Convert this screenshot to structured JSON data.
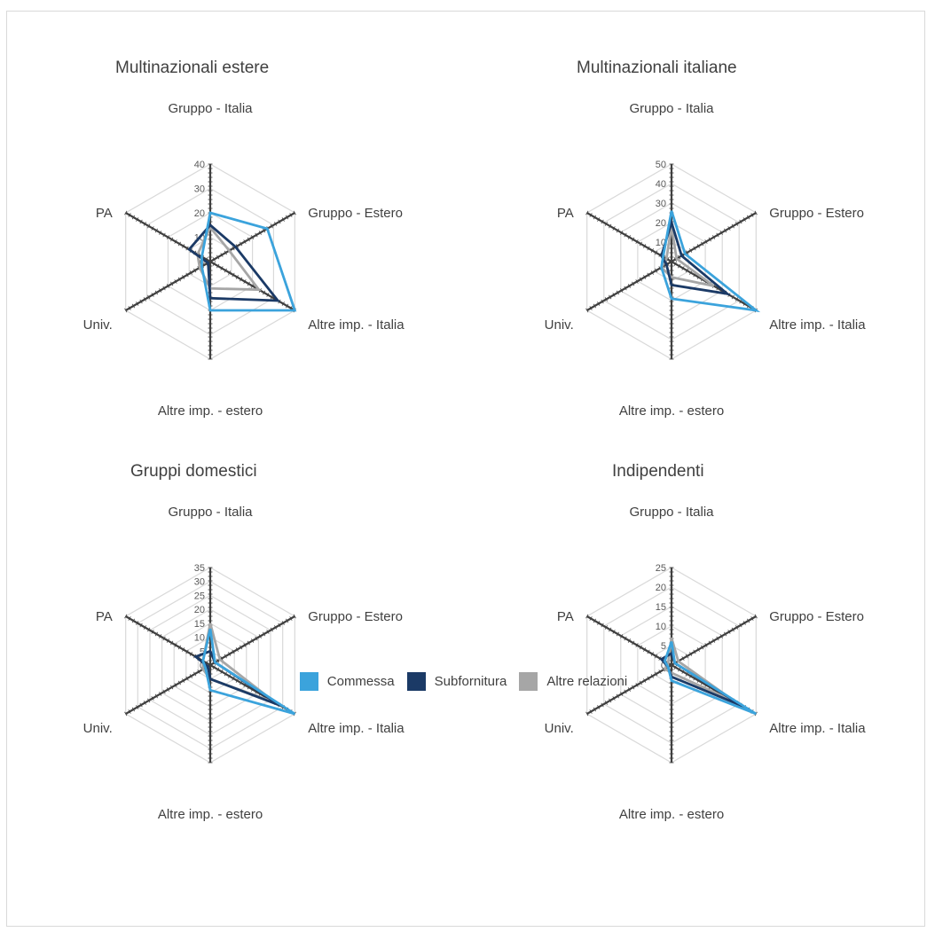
{
  "chart_data": [
    {
      "type": "radar",
      "title": "Multinazionali estere",
      "axes": [
        "Gruppo - Italia",
        "Gruppo - Estero",
        "Altre imp. - Italia",
        "Altre imp. - estero",
        "Univ.",
        "PA"
      ],
      "ticks": [
        0,
        10,
        20,
        30,
        40
      ],
      "max": 40,
      "series": [
        {
          "name": "Commessa",
          "values": [
            20,
            27,
            40,
            20,
            4,
            4
          ]
        },
        {
          "name": "Subfornitura",
          "values": [
            15,
            12,
            32,
            15,
            1,
            10
          ]
        },
        {
          "name": "Altre relazioni",
          "values": [
            14,
            9,
            23,
            11,
            5,
            6
          ]
        }
      ]
    },
    {
      "type": "radar",
      "title": "Multinazionali italiane",
      "axes": [
        "Gruppo - Italia",
        "Gruppo - Estero",
        "Altre imp. - Italia",
        "Altre imp. - estero",
        "Univ.",
        "PA"
      ],
      "ticks": [
        0,
        10,
        20,
        30,
        40,
        50
      ],
      "max": 50,
      "series": [
        {
          "name": "Commessa",
          "values": [
            26,
            8,
            50,
            19,
            6,
            5
          ]
        },
        {
          "name": "Subfornitura",
          "values": [
            20,
            6,
            33,
            12,
            3,
            6
          ]
        },
        {
          "name": "Altre relazioni",
          "values": [
            18,
            3,
            25,
            8,
            6,
            3
          ]
        }
      ]
    },
    {
      "type": "radar",
      "title": "Gruppi domestici",
      "axes": [
        "Gruppo - Italia",
        "Gruppo - Estero",
        "Altre imp. - Italia",
        "Altre imp. - estero",
        "Univ.",
        "PA"
      ],
      "ticks": [
        0,
        5,
        10,
        15,
        20,
        25,
        30,
        35
      ],
      "max": 35,
      "series": [
        {
          "name": "Commessa",
          "values": [
            13,
            2,
            35,
            9,
            2,
            3
          ]
        },
        {
          "name": "Subfornitura",
          "values": [
            5,
            2,
            29,
            5,
            1,
            6
          ]
        },
        {
          "name": "Altre relazioni",
          "values": [
            15,
            4,
            27,
            5,
            3,
            3
          ]
        }
      ]
    },
    {
      "type": "radar",
      "title": "Indipendenti",
      "axes": [
        "Gruppo - Italia",
        "Gruppo - Estero",
        "Altre imp. - Italia",
        "Altre imp. - estero",
        "Univ.",
        "PA"
      ],
      "ticks": [
        0,
        5,
        10,
        15,
        20,
        25
      ],
      "max": 25,
      "series": [
        {
          "name": "Commessa",
          "values": [
            6,
            1,
            25,
            4,
            1,
            2
          ]
        },
        {
          "name": "Subfornitura",
          "values": [
            3,
            1,
            21,
            3,
            1,
            3
          ]
        },
        {
          "name": "Altre relazioni",
          "values": [
            7,
            2,
            19,
            2,
            2,
            1
          ]
        }
      ]
    }
  ],
  "legend": [
    {
      "label": "Commessa",
      "color": "#3ba3dc"
    },
    {
      "label": "Subfornitura",
      "color": "#1b3a66"
    },
    {
      "label": "Altre relazioni",
      "color": "#a6a6a6"
    }
  ],
  "colors": {
    "series": [
      "#3ba3dc",
      "#1b3a66",
      "#a6a6a6"
    ],
    "grid": "#d9d9d9",
    "axis": "#404040"
  }
}
